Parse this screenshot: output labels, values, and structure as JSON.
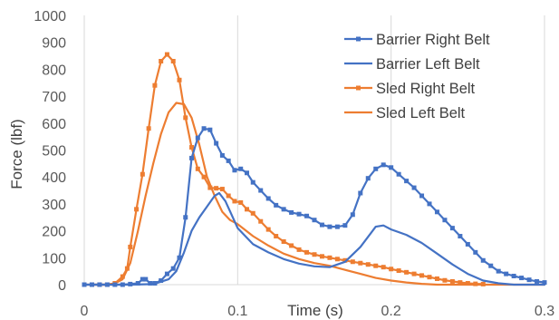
{
  "chart_data": {
    "type": "line",
    "title": "",
    "xlabel": "Time (s)",
    "ylabel": "Force (lbf)",
    "xlim": [
      0,
      0.3
    ],
    "ylim": [
      0,
      1000
    ],
    "x_ticks": [
      "0",
      "0.1",
      "0.2",
      "0.3"
    ],
    "y_ticks": [
      "0",
      "100",
      "200",
      "300",
      "400",
      "500",
      "600",
      "700",
      "800",
      "900",
      "1000"
    ],
    "grid": "vertical",
    "legend_position": "top-right",
    "series": [
      {
        "name": "Barrier Right Belt",
        "color": "#4472c4",
        "markers": true,
        "points": [
          [
            0,
            0
          ],
          [
            0.005,
            0
          ],
          [
            0.01,
            0
          ],
          [
            0.015,
            0
          ],
          [
            0.02,
            0
          ],
          [
            0.025,
            0
          ],
          [
            0.03,
            2
          ],
          [
            0.035,
            5
          ],
          [
            0.038,
            20
          ],
          [
            0.04,
            20
          ],
          [
            0.043,
            5
          ],
          [
            0.046,
            5
          ],
          [
            0.05,
            15
          ],
          [
            0.054,
            40
          ],
          [
            0.058,
            60
          ],
          [
            0.062,
            100
          ],
          [
            0.066,
            250
          ],
          [
            0.07,
            470
          ],
          [
            0.074,
            545
          ],
          [
            0.078,
            580
          ],
          [
            0.082,
            575
          ],
          [
            0.086,
            525
          ],
          [
            0.09,
            480
          ],
          [
            0.094,
            460
          ],
          [
            0.098,
            425
          ],
          [
            0.102,
            430
          ],
          [
            0.106,
            415
          ],
          [
            0.11,
            380
          ],
          [
            0.115,
            350
          ],
          [
            0.12,
            320
          ],
          [
            0.125,
            295
          ],
          [
            0.13,
            280
          ],
          [
            0.135,
            268
          ],
          [
            0.14,
            262
          ],
          [
            0.145,
            255
          ],
          [
            0.15,
            240
          ],
          [
            0.155,
            222
          ],
          [
            0.16,
            215
          ],
          [
            0.165,
            215
          ],
          [
            0.17,
            220
          ],
          [
            0.175,
            260
          ],
          [
            0.18,
            340
          ],
          [
            0.185,
            395
          ],
          [
            0.19,
            430
          ],
          [
            0.195,
            445
          ],
          [
            0.2,
            435
          ],
          [
            0.205,
            410
          ],
          [
            0.21,
            385
          ],
          [
            0.215,
            360
          ],
          [
            0.22,
            330
          ],
          [
            0.225,
            300
          ],
          [
            0.23,
            270
          ],
          [
            0.235,
            240
          ],
          [
            0.24,
            210
          ],
          [
            0.245,
            180
          ],
          [
            0.25,
            150
          ],
          [
            0.255,
            120
          ],
          [
            0.26,
            90
          ],
          [
            0.265,
            70
          ],
          [
            0.27,
            50
          ],
          [
            0.275,
            40
          ],
          [
            0.28,
            32
          ],
          [
            0.285,
            25
          ],
          [
            0.29,
            18
          ],
          [
            0.295,
            12
          ],
          [
            0.3,
            8
          ]
        ]
      },
      {
        "name": "Barrier Left Belt",
        "color": "#4472c4",
        "markers": false,
        "points": [
          [
            0,
            0
          ],
          [
            0.03,
            0
          ],
          [
            0.045,
            2
          ],
          [
            0.055,
            20
          ],
          [
            0.06,
            50
          ],
          [
            0.065,
            120
          ],
          [
            0.07,
            200
          ],
          [
            0.075,
            250
          ],
          [
            0.08,
            290
          ],
          [
            0.085,
            330
          ],
          [
            0.088,
            340
          ],
          [
            0.092,
            310
          ],
          [
            0.096,
            260
          ],
          [
            0.1,
            210
          ],
          [
            0.105,
            180
          ],
          [
            0.11,
            150
          ],
          [
            0.12,
            120
          ],
          [
            0.13,
            95
          ],
          [
            0.14,
            78
          ],
          [
            0.15,
            68
          ],
          [
            0.16,
            65
          ],
          [
            0.17,
            85
          ],
          [
            0.18,
            140
          ],
          [
            0.19,
            215
          ],
          [
            0.195,
            220
          ],
          [
            0.2,
            205
          ],
          [
            0.21,
            185
          ],
          [
            0.22,
            155
          ],
          [
            0.23,
            115
          ],
          [
            0.24,
            75
          ],
          [
            0.25,
            40
          ],
          [
            0.26,
            15
          ],
          [
            0.27,
            5
          ],
          [
            0.28,
            0
          ],
          [
            0.3,
            0
          ]
        ]
      },
      {
        "name": "Sled Right Belt",
        "color": "#ed7d31",
        "markers": true,
        "points": [
          [
            0.005,
            0
          ],
          [
            0.01,
            0
          ],
          [
            0.015,
            0
          ],
          [
            0.02,
            5
          ],
          [
            0.025,
            30
          ],
          [
            0.028,
            60
          ],
          [
            0.03,
            140
          ],
          [
            0.034,
            280
          ],
          [
            0.038,
            410
          ],
          [
            0.042,
            580
          ],
          [
            0.046,
            740
          ],
          [
            0.05,
            830
          ],
          [
            0.054,
            855
          ],
          [
            0.058,
            830
          ],
          [
            0.062,
            760
          ],
          [
            0.066,
            620
          ],
          [
            0.07,
            510
          ],
          [
            0.074,
            430
          ],
          [
            0.078,
            400
          ],
          [
            0.082,
            360
          ],
          [
            0.086,
            358
          ],
          [
            0.09,
            355
          ],
          [
            0.094,
            330
          ],
          [
            0.098,
            310
          ],
          [
            0.102,
            305
          ],
          [
            0.106,
            280
          ],
          [
            0.11,
            265
          ],
          [
            0.115,
            235
          ],
          [
            0.12,
            205
          ],
          [
            0.125,
            180
          ],
          [
            0.13,
            160
          ],
          [
            0.135,
            145
          ],
          [
            0.14,
            130
          ],
          [
            0.145,
            120
          ],
          [
            0.15,
            112
          ],
          [
            0.155,
            105
          ],
          [
            0.16,
            100
          ],
          [
            0.165,
            95
          ],
          [
            0.17,
            90
          ],
          [
            0.175,
            85
          ],
          [
            0.18,
            80
          ],
          [
            0.185,
            75
          ],
          [
            0.19,
            70
          ],
          [
            0.195,
            65
          ],
          [
            0.2,
            58
          ],
          [
            0.205,
            52
          ],
          [
            0.21,
            46
          ],
          [
            0.215,
            40
          ],
          [
            0.22,
            34
          ],
          [
            0.225,
            28
          ],
          [
            0.23,
            22
          ],
          [
            0.235,
            16
          ],
          [
            0.24,
            12
          ],
          [
            0.245,
            8
          ],
          [
            0.25,
            5
          ],
          [
            0.255,
            3
          ],
          [
            0.26,
            2
          ]
        ]
      },
      {
        "name": "Sled Left Belt",
        "color": "#ed7d31",
        "markers": false,
        "points": [
          [
            0,
            0
          ],
          [
            0.015,
            0
          ],
          [
            0.02,
            5
          ],
          [
            0.025,
            20
          ],
          [
            0.03,
            80
          ],
          [
            0.035,
            200
          ],
          [
            0.04,
            330
          ],
          [
            0.045,
            450
          ],
          [
            0.05,
            560
          ],
          [
            0.055,
            640
          ],
          [
            0.06,
            675
          ],
          [
            0.065,
            670
          ],
          [
            0.07,
            620
          ],
          [
            0.075,
            520
          ],
          [
            0.08,
            400
          ],
          [
            0.085,
            330
          ],
          [
            0.09,
            270
          ],
          [
            0.095,
            240
          ],
          [
            0.1,
            225
          ],
          [
            0.11,
            180
          ],
          [
            0.12,
            145
          ],
          [
            0.13,
            115
          ],
          [
            0.14,
            95
          ],
          [
            0.15,
            80
          ],
          [
            0.16,
            70
          ],
          [
            0.17,
            55
          ],
          [
            0.18,
            40
          ],
          [
            0.19,
            25
          ],
          [
            0.2,
            15
          ],
          [
            0.21,
            8
          ],
          [
            0.22,
            3
          ],
          [
            0.23,
            0
          ],
          [
            0.3,
            0
          ]
        ]
      }
    ]
  }
}
